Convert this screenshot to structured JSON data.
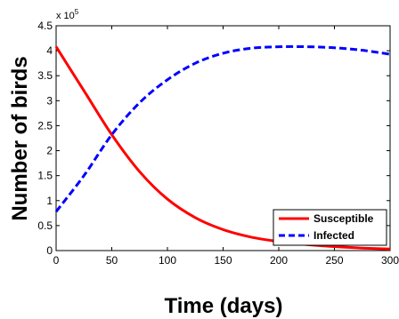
{
  "chart_data": {
    "type": "line",
    "xlabel": "Time (days)",
    "ylabel": "Number of birds",
    "xlim": [
      0,
      300
    ],
    "ylim": [
      0,
      450000
    ],
    "x_ticks": [
      0,
      50,
      100,
      150,
      200,
      250,
      300
    ],
    "x_tick_labels": [
      "0",
      "50",
      "100",
      "150",
      "200",
      "250",
      "300"
    ],
    "y_ticks": [
      0,
      50000,
      100000,
      150000,
      200000,
      250000,
      300000,
      350000,
      400000,
      450000
    ],
    "y_tick_labels": [
      "0",
      "0.5",
      "1",
      "1.5",
      "2",
      "2.5",
      "3",
      "3.5",
      "4",
      "4.5"
    ],
    "y_multiplier": {
      "base": "x 10",
      "exponent": "5"
    },
    "grid": false,
    "legend_position": "bottom-right",
    "x": [
      0,
      25,
      50,
      75,
      100,
      125,
      150,
      175,
      200,
      225,
      250,
      275,
      300
    ],
    "series": [
      {
        "name": "Susceptible",
        "color": "#ff0000",
        "style": "solid",
        "values": [
          408000,
          320000,
          232000,
          158000,
          103000,
          66000,
          42000,
          27000,
          18000,
          12000,
          8000,
          5000,
          3000
        ]
      },
      {
        "name": "Infected",
        "color": "#0000ff",
        "style": "dashed",
        "values": [
          78000,
          150000,
          232000,
          296000,
          342000,
          375000,
          395000,
          405000,
          408000,
          408000,
          406000,
          401000,
          393000
        ]
      }
    ]
  }
}
